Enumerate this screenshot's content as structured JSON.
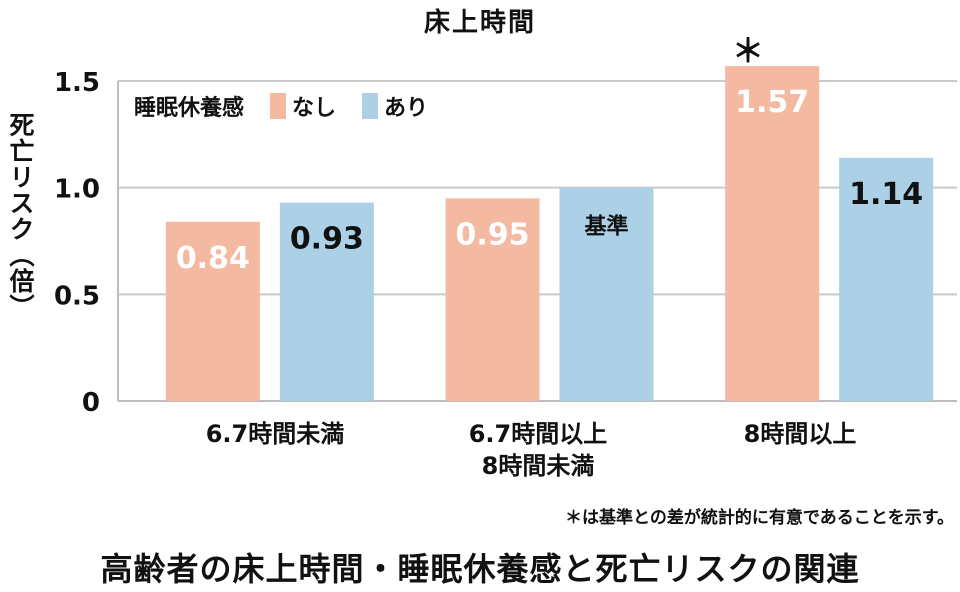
{
  "chart_data": {
    "type": "bar",
    "title": "床上時間",
    "ylabel": "死亡リスク（倍）",
    "ylim": [
      0,
      1.5
    ],
    "yticks": [
      "0",
      "0.5",
      "1.0",
      "1.5"
    ],
    "legend_title": "睡眠休養感",
    "categories": [
      {
        "line1": "6.7時間未満",
        "line2": ""
      },
      {
        "line1": "6.7時間以上",
        "line2": "8時間未満"
      },
      {
        "line1": "8時間以上",
        "line2": ""
      }
    ],
    "series": [
      {
        "name": "なし",
        "color": "#f3b9a1",
        "values": [
          0.84,
          0.95,
          1.57
        ],
        "labels": [
          "0.84",
          "0.95",
          "1.57"
        ],
        "label_color": "#ffffff"
      },
      {
        "name": "あり",
        "color": "#acd1e7",
        "values": [
          0.93,
          1.0,
          1.14
        ],
        "labels": [
          "0.93",
          "基準",
          "1.14"
        ],
        "label_color": "#111111"
      }
    ],
    "significance_marker": "＊",
    "footnote": "＊は基準との差が統計的に有意であることを示す。",
    "grid": true,
    "legend_position": "top-left"
  },
  "caption": "高齢者の床上時間・睡眠休養感と死亡リスクの関連"
}
